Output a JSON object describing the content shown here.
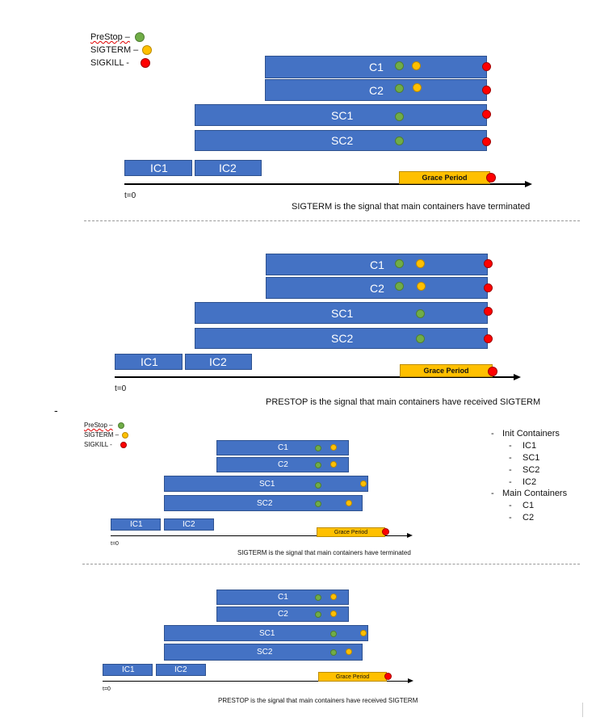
{
  "legend": {
    "prestop": "PreStop –",
    "sigterm": "SIGTERM –",
    "sigkill": "SIGKILL -"
  },
  "labels": {
    "c1": "C1",
    "c2": "C2",
    "sc1": "SC1",
    "sc2": "SC2",
    "ic1": "IC1",
    "ic2": "IC2",
    "grace": "Grace Period",
    "t0": "t=0"
  },
  "captions": {
    "d1": "SIGTERM is the signal that main containers have terminated",
    "d2": "PRESTOP is the signal that main containers have received SIGTERM",
    "d3": "SIGTERM is the signal that main containers have terminated",
    "d4": "PRESTOP is the signal that main containers have received SIGTERM"
  },
  "dash_marker": "-",
  "list": {
    "init_header": "Init Containers",
    "init_items": [
      "IC1",
      "SC1",
      "SC2",
      "IC2"
    ],
    "main_header": "Main Containers",
    "main_items": [
      "C1",
      "C2"
    ]
  },
  "colors": {
    "bar": "#4472c4",
    "prestop": "#70ad47",
    "sigterm": "#ffc000",
    "sigkill": "#ff0000",
    "grace": "#ffc000"
  }
}
